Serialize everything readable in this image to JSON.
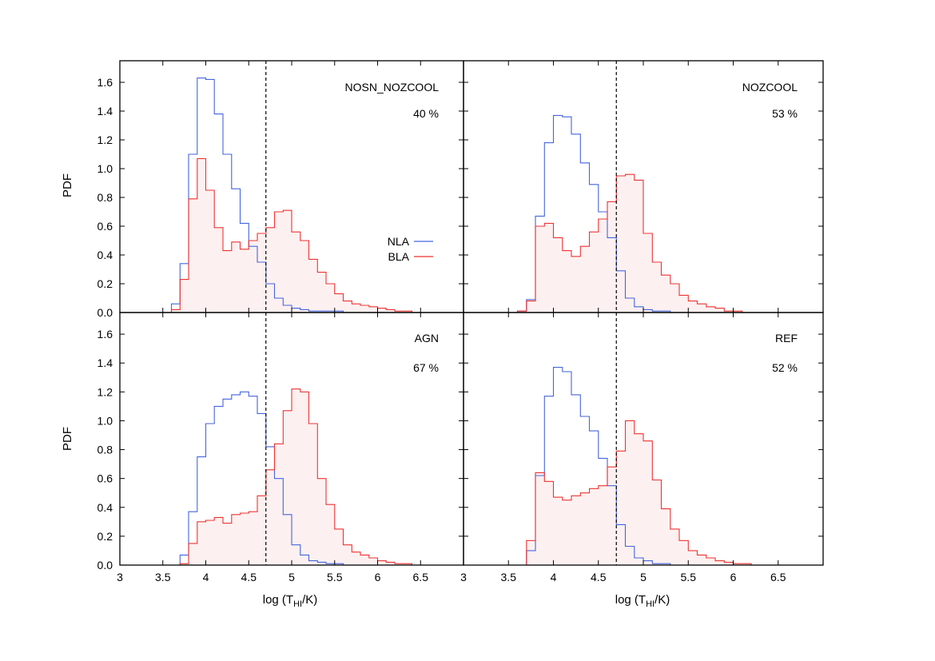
{
  "chart_data": {
    "type": "histogram",
    "layout": "2x2 panels, shared axes",
    "xlabel": "log (T",
    "xlabel_sub": "HI",
    "xlabel_end": "/K)",
    "ylabel": "PDF",
    "xlim": [
      3,
      7
    ],
    "ylim": [
      0,
      1.75
    ],
    "x_ticks": [
      3,
      3.5,
      4,
      4.5,
      5,
      5.5,
      6,
      6.5
    ],
    "x_tick_labels": [
      "3",
      "3.5",
      "4",
      "4.5",
      "5",
      "5.5",
      "6",
      "6.5"
    ],
    "y_ticks": [
      0,
      0.2,
      0.4,
      0.6,
      0.8,
      1.0,
      1.2,
      1.4,
      1.6
    ],
    "y_tick_labels": [
      "0.0",
      "0.2",
      "0.4",
      "0.6",
      "0.8",
      "1.0",
      "1.2",
      "1.4",
      "1.6"
    ],
    "bin_start": 3.5,
    "bin_width": 0.1,
    "divider_x": 4.7,
    "legend": {
      "placement": "inside top-left panel, right side",
      "entries": [
        {
          "label": "NLA",
          "color": "#4466dd"
        },
        {
          "label": "BLA",
          "color": "#ee3333"
        }
      ]
    },
    "panels": [
      {
        "name": "NOSN_NOZCOOL",
        "percent": "40 %",
        "series": [
          {
            "name": "NLA",
            "values": [
              0.0,
              0.06,
              0.34,
              1.1,
              1.63,
              1.62,
              1.38,
              1.1,
              0.86,
              0.62,
              0.46,
              0.35,
              0.2,
              0.1,
              0.05,
              0.03,
              0.02,
              0.01,
              0.01,
              0.01,
              0.01,
              0.0,
              0.0,
              0.0,
              0.0,
              0.0,
              0.0,
              0.0,
              0.0,
              0.0,
              0.0,
              0.0,
              0.0,
              0.0,
              0.0
            ]
          },
          {
            "name": "BLA",
            "values": [
              0.0,
              0.02,
              0.23,
              0.79,
              1.07,
              0.85,
              0.59,
              0.43,
              0.49,
              0.44,
              0.5,
              0.55,
              0.59,
              0.7,
              0.71,
              0.56,
              0.5,
              0.37,
              0.28,
              0.2,
              0.13,
              0.08,
              0.06,
              0.05,
              0.04,
              0.03,
              0.02,
              0.01,
              0.01,
              0.0,
              0.0,
              0.0,
              0.0,
              0.0,
              0.0
            ]
          }
        ]
      },
      {
        "name": "NOZCOOL",
        "percent": "53 %",
        "series": [
          {
            "name": "NLA",
            "values": [
              0.0,
              0.01,
              0.09,
              0.67,
              1.18,
              1.37,
              1.36,
              1.24,
              1.04,
              0.89,
              0.7,
              0.52,
              0.29,
              0.1,
              0.04,
              0.02,
              0.01,
              0.01,
              0.0,
              0.0,
              0.0,
              0.0,
              0.0,
              0.0,
              0.0,
              0.0,
              0.0,
              0.0,
              0.0,
              0.0,
              0.0,
              0.0,
              0.0,
              0.0,
              0.0
            ]
          },
          {
            "name": "BLA",
            "values": [
              0.0,
              0.01,
              0.08,
              0.6,
              0.62,
              0.52,
              0.43,
              0.39,
              0.46,
              0.56,
              0.65,
              0.77,
              0.95,
              0.96,
              0.92,
              0.55,
              0.35,
              0.26,
              0.2,
              0.12,
              0.08,
              0.06,
              0.04,
              0.03,
              0.01,
              0.01,
              0.0,
              0.0,
              0.0,
              0.0,
              0.0,
              0.0,
              0.0,
              0.0,
              0.0
            ]
          }
        ]
      },
      {
        "name": "AGN",
        "percent": "67 %",
        "series": [
          {
            "name": "NLA",
            "values": [
              0.0,
              0.0,
              0.07,
              0.37,
              0.75,
              0.98,
              1.1,
              1.15,
              1.18,
              1.2,
              1.17,
              1.05,
              0.82,
              0.6,
              0.35,
              0.14,
              0.07,
              0.03,
              0.02,
              0.01,
              0.01,
              0.0,
              0.0,
              0.0,
              0.0,
              0.0,
              0.0,
              0.0,
              0.0,
              0.0,
              0.0,
              0.0,
              0.0,
              0.0,
              0.0
            ]
          },
          {
            "name": "BLA",
            "values": [
              0.0,
              0.0,
              0.01,
              0.15,
              0.3,
              0.31,
              0.33,
              0.29,
              0.35,
              0.36,
              0.37,
              0.48,
              0.66,
              0.84,
              1.07,
              1.22,
              1.2,
              0.98,
              0.6,
              0.42,
              0.25,
              0.14,
              0.09,
              0.07,
              0.05,
              0.03,
              0.02,
              0.01,
              0.01,
              0.0,
              0.0,
              0.0,
              0.0,
              0.0,
              0.0
            ]
          }
        ]
      },
      {
        "name": "REF",
        "percent": "52 %",
        "series": [
          {
            "name": "NLA",
            "values": [
              0.0,
              0.0,
              0.1,
              0.62,
              1.17,
              1.37,
              1.34,
              1.18,
              1.03,
              0.93,
              0.74,
              0.55,
              0.28,
              0.13,
              0.05,
              0.03,
              0.01,
              0.01,
              0.0,
              0.0,
              0.0,
              0.0,
              0.0,
              0.0,
              0.0,
              0.0,
              0.0,
              0.0,
              0.0,
              0.0,
              0.0,
              0.0,
              0.0,
              0.0,
              0.0
            ]
          },
          {
            "name": "BLA",
            "values": [
              0.0,
              0.0,
              0.17,
              0.64,
              0.58,
              0.47,
              0.45,
              0.48,
              0.5,
              0.53,
              0.55,
              0.68,
              0.79,
              1.0,
              0.91,
              0.86,
              0.59,
              0.39,
              0.25,
              0.17,
              0.1,
              0.07,
              0.05,
              0.03,
              0.02,
              0.01,
              0.01,
              0.0,
              0.0,
              0.0,
              0.0,
              0.0,
              0.0,
              0.0,
              0.0
            ]
          }
        ]
      }
    ],
    "colors": {
      "nla": "#4466dd",
      "bla": "#ee3333",
      "bla_fill": "#fdf0f0",
      "divider": "#000000"
    }
  }
}
